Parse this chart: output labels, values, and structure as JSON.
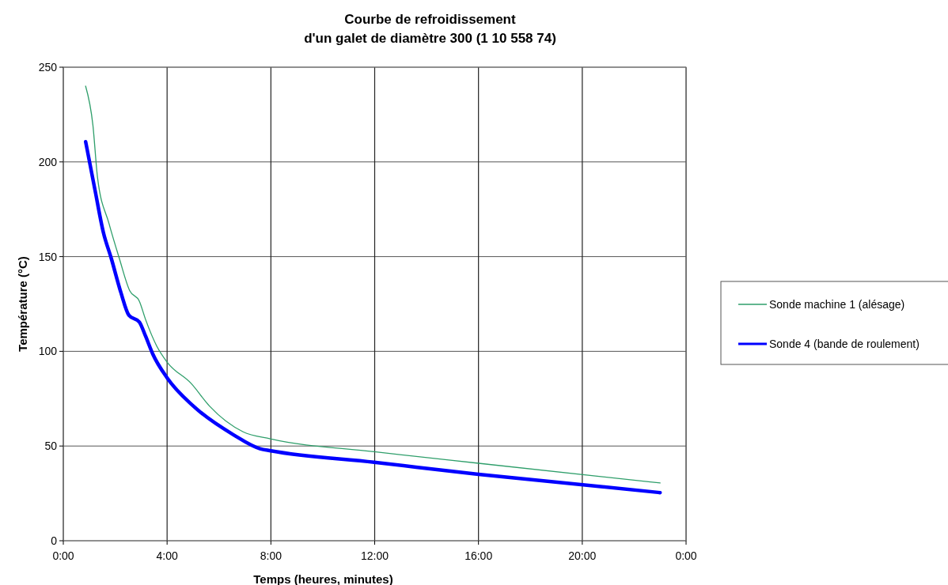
{
  "chart_data": {
    "type": "line",
    "title": "Courbe de refroidissement\nd'un galet de diamètre 300 (1 10 558 74)",
    "xlabel": "Temps (heures, minutes)",
    "ylabel": "Température (°C)",
    "xlim": [
      0,
      24
    ],
    "xticks": [
      {
        "value": 0,
        "label": "0:00"
      },
      {
        "value": 4,
        "label": "4:00"
      },
      {
        "value": 8,
        "label": "8:00"
      },
      {
        "value": 12,
        "label": "12:00"
      },
      {
        "value": 16,
        "label": "16:00"
      },
      {
        "value": 20,
        "label": "20:00"
      },
      {
        "value": 24,
        "label": "0:00"
      }
    ],
    "ylim": [
      0,
      250
    ],
    "yticks": [
      0,
      50,
      100,
      150,
      200,
      250
    ],
    "grid": true,
    "legend": "right",
    "marker": "none",
    "series": [
      {
        "name": "Sonde machine 1 (alésage)",
        "color": "#2e9e6a",
        "x": [
          0.86,
          1.14,
          1.32,
          1.76,
          2.16,
          2.56,
          2.93,
          3.17,
          3.6,
          4.0,
          4.93,
          5.64,
          6.93,
          7.98,
          11.98,
          16.0,
          23.0
        ],
        "values": [
          240,
          219.5,
          191.6,
          167.5,
          149,
          132,
          126.5,
          116.8,
          102.8,
          94.3,
          83,
          71,
          57.5,
          53.8,
          47,
          40.9,
          30.5
        ]
      },
      {
        "name": "Sonde 4 (bande de roulement)",
        "color": "#0000ff",
        "x": [
          0.86,
          1.23,
          1.54,
          1.85,
          2.22,
          2.53,
          2.93,
          3.17,
          3.45,
          4.0,
          5.02,
          6.55,
          7.58,
          8.0,
          11.98,
          16.0,
          23.0
        ],
        "values": [
          210.7,
          184.5,
          163,
          149,
          131,
          119,
          115.5,
          108,
          98.5,
          86,
          71,
          56,
          48.6,
          47.5,
          41.4,
          35.1,
          25.4
        ]
      }
    ]
  }
}
